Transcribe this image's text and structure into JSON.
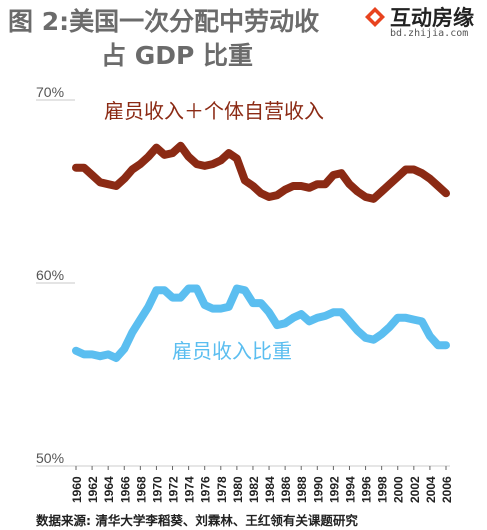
{
  "header": {
    "title_line1": "图 2:美国一次分配中劳动收",
    "title_line2": "占 GDP 比重"
  },
  "watermark": {
    "name": "互动房缘",
    "url": "bd.zhijia.com",
    "logo_color": "#e8431f"
  },
  "source": "数据来源: 清华大学李稻葵、刘霖林、王红领有关课题研究",
  "chart_data": {
    "type": "line",
    "ylim": [
      50,
      70
    ],
    "yticks": [
      70,
      60,
      50
    ],
    "ytick_labels": [
      "70%",
      "60%",
      "50%"
    ],
    "xticks": [
      "1960",
      "1962",
      "1964",
      "1966",
      "1968",
      "1970",
      "1972",
      "1974",
      "1976",
      "1978",
      "1980",
      "1982",
      "1984",
      "1986",
      "1988",
      "1990",
      "1992",
      "1994",
      "1996",
      "1998",
      "2000",
      "2002",
      "2004",
      "2006"
    ],
    "x": [
      1960,
      1961,
      1962,
      1963,
      1964,
      1965,
      1966,
      1967,
      1968,
      1969,
      1970,
      1971,
      1972,
      1973,
      1974,
      1975,
      1976,
      1977,
      1978,
      1979,
      1980,
      1981,
      1982,
      1983,
      1984,
      1985,
      1986,
      1987,
      1988,
      1989,
      1990,
      1991,
      1992,
      1993,
      1994,
      1995,
      1996,
      1997,
      1998,
      1999,
      2000,
      2001,
      2002,
      2003,
      2004,
      2005,
      2006
    ],
    "series": [
      {
        "name": "雇员收入＋个体自营收入",
        "color": "#8b2a14",
        "values": [
          66.3,
          66.3,
          65.9,
          65.5,
          65.4,
          65.3,
          65.7,
          66.2,
          66.5,
          66.9,
          67.4,
          67.0,
          67.1,
          67.5,
          66.9,
          66.5,
          66.4,
          66.5,
          66.7,
          67.1,
          66.8,
          65.6,
          65.3,
          64.9,
          64.7,
          64.8,
          65.1,
          65.3,
          65.3,
          65.2,
          65.4,
          65.4,
          65.9,
          66.0,
          65.4,
          65.0,
          64.7,
          64.6,
          65.0,
          65.4,
          65.8,
          66.2,
          66.2,
          66.0,
          65.7,
          65.3,
          64.9
        ]
      },
      {
        "name": "雇员收入比重",
        "color": "#5bbef0",
        "values": [
          56.3,
          56.1,
          56.1,
          56.0,
          56.1,
          55.9,
          56.4,
          57.3,
          58.0,
          58.7,
          59.6,
          59.6,
          59.2,
          59.2,
          59.7,
          59.7,
          58.8,
          58.6,
          58.6,
          58.7,
          59.7,
          59.6,
          58.9,
          58.9,
          58.4,
          57.7,
          57.8,
          58.1,
          58.3,
          57.9,
          58.1,
          58.2,
          58.4,
          58.4,
          57.9,
          57.4,
          57.0,
          56.9,
          57.2,
          57.6,
          58.1,
          58.1,
          58.0,
          57.9,
          57.1,
          56.6,
          56.6
        ]
      }
    ]
  }
}
